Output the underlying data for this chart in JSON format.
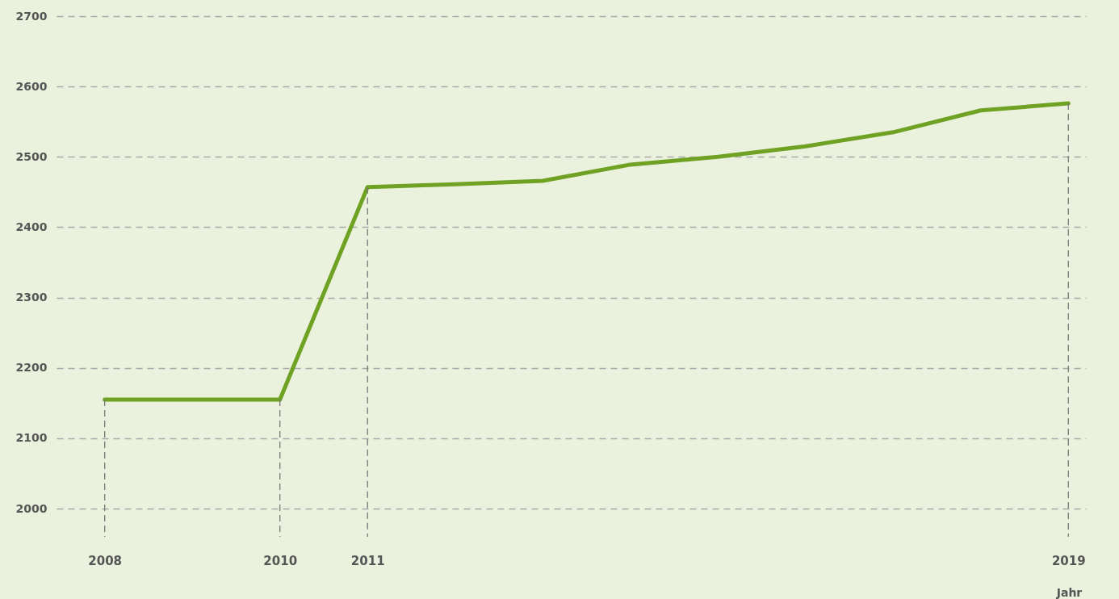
{
  "chart_data": {
    "type": "line",
    "xlabel": "Jahr",
    "x": [
      2008,
      2010,
      2011,
      2012,
      2013,
      2014,
      2015,
      2016,
      2017,
      2018,
      2019
    ],
    "series": [
      {
        "color": "#6fa123",
        "values": [
          2155,
          2155,
          2457,
          2461,
          2466,
          2489,
          2500,
          2515,
          2535,
          2566,
          2576
        ]
      }
    ],
    "xlim": [
      2007.45,
      2019.2
    ],
    "xticks": [
      2008,
      2010,
      2011,
      2019
    ],
    "ylim": [
      1960,
      2700
    ],
    "yticks": [
      2000,
      2100,
      2200,
      2300,
      2400,
      2500,
      2600,
      2700
    ],
    "ref_lines": [
      {
        "axis": "x",
        "value": 2008,
        "color": "#777777",
        "line_style": "dashed"
      },
      {
        "axis": "x",
        "value": 2010,
        "color": "#777777",
        "line_style": "dashed"
      },
      {
        "axis": "x",
        "value": 2011,
        "color": "#777777",
        "line_style": "dashed"
      },
      {
        "axis": "x",
        "value": 2019,
        "color": "#777777",
        "line_style": "dashed"
      }
    ],
    "grid": "y",
    "marker": "none",
    "line_style": "solid"
  }
}
